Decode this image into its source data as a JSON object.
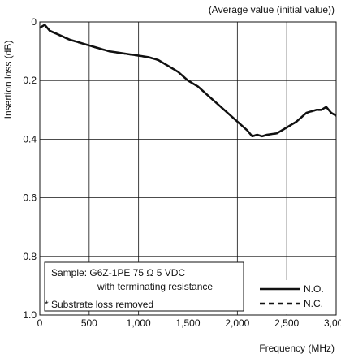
{
  "chart_data": {
    "type": "line",
    "title": "",
    "subtitle": "(Average value (initial value))",
    "xlabel": "Frequency (MHz)",
    "ylabel": "Insertion loss (dB)",
    "xlim": [
      0,
      3000
    ],
    "ylim": [
      0,
      1.0
    ],
    "y_inverted": true,
    "grid": true,
    "x_ticks": [
      0,
      500,
      1000,
      1500,
      2000,
      2500,
      3000
    ],
    "x_tick_labels": [
      "0",
      "500",
      "1,000",
      "1,500",
      "2,000",
      "2,500",
      "3,000"
    ],
    "y_ticks": [
      0,
      0.2,
      0.4,
      0.6,
      0.8,
      1.0
    ],
    "y_tick_labels": [
      "0",
      "0.2",
      "0.4",
      "0.6",
      "0.8",
      "1.0"
    ],
    "legend_position": "bottom-right",
    "annotations": [
      "Sample:  G6Z-1PE  75 Ω  5 VDC",
      "with terminating resistance",
      "* Substrate loss removed"
    ],
    "series": [
      {
        "name": "N.O.",
        "style": "solid",
        "color": "#111111",
        "x": [
          0,
          50,
          100,
          200,
          300,
          400,
          500,
          600,
          700,
          800,
          900,
          1000,
          1100,
          1200,
          1300,
          1400,
          1500,
          1600,
          1700,
          1800,
          1900,
          2000,
          2100,
          2150,
          2200,
          2250,
          2300,
          2400,
          2500,
          2600,
          2700,
          2800,
          2850,
          2900,
          2950,
          3000
        ],
        "values": [
          0.02,
          0.01,
          0.03,
          0.045,
          0.06,
          0.07,
          0.08,
          0.09,
          0.1,
          0.105,
          0.11,
          0.115,
          0.12,
          0.13,
          0.15,
          0.17,
          0.2,
          0.22,
          0.25,
          0.28,
          0.31,
          0.34,
          0.37,
          0.39,
          0.385,
          0.39,
          0.385,
          0.38,
          0.36,
          0.34,
          0.31,
          0.3,
          0.3,
          0.29,
          0.31,
          0.32
        ]
      },
      {
        "name": "N.C.",
        "style": "dashed",
        "color": "#111111",
        "x": [
          0,
          50,
          100,
          200,
          300,
          400,
          500,
          600,
          700,
          800,
          900,
          1000,
          1100,
          1200,
          1300,
          1400,
          1500,
          1600,
          1700,
          1800,
          1900,
          2000,
          2100,
          2150,
          2200,
          2250,
          2300,
          2400,
          2500,
          2600,
          2700,
          2800,
          2850,
          2900,
          2950,
          3000
        ],
        "values": [
          0.02,
          0.012,
          0.032,
          0.047,
          0.062,
          0.072,
          0.082,
          0.092,
          0.101,
          0.107,
          0.112,
          0.117,
          0.122,
          0.132,
          0.152,
          0.172,
          0.202,
          0.222,
          0.252,
          0.282,
          0.312,
          0.342,
          0.372,
          0.392,
          0.387,
          0.392,
          0.387,
          0.382,
          0.362,
          0.342,
          0.312,
          0.302,
          0.302,
          0.292,
          0.312,
          0.322
        ]
      }
    ]
  }
}
